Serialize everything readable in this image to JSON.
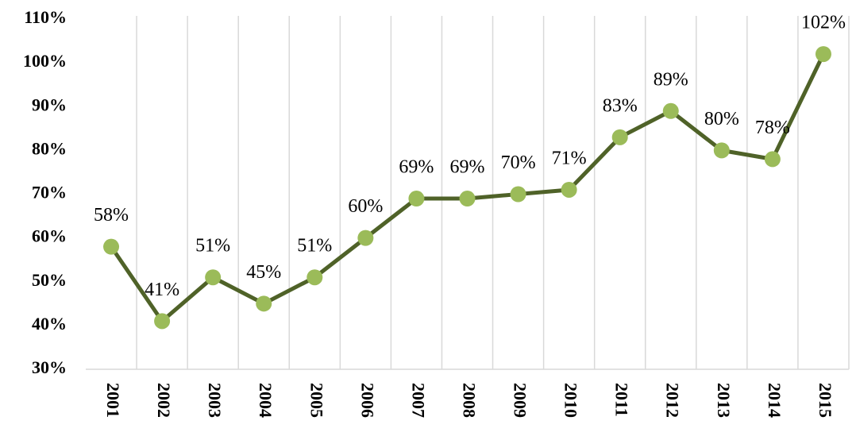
{
  "chart_data": {
    "type": "line",
    "categories": [
      "2001",
      "2002",
      "2003",
      "2004",
      "2005",
      "2006",
      "2007",
      "2008",
      "2009",
      "2010",
      "2011",
      "2012",
      "2013",
      "2014",
      "2015"
    ],
    "series": [
      {
        "color": "#4f6228",
        "marker_color": "#9bbb59",
        "values": [
          58,
          41,
          51,
          45,
          51,
          60,
          69,
          69,
          70,
          71,
          83,
          89,
          80,
          78,
          102
        ],
        "value_labels": [
          "58%",
          "41%",
          "51%",
          "45%",
          "51%",
          "60%",
          "69%",
          "69%",
          "70%",
          "71%",
          "83%",
          "89%",
          "80%",
          "78%",
          "102%"
        ]
      }
    ],
    "ylim": [
      30,
      110
    ],
    "yticks": [
      {
        "value": 30,
        "label": "30%"
      },
      {
        "value": 40,
        "label": "40%"
      },
      {
        "value": 50,
        "label": "50%"
      },
      {
        "value": 60,
        "label": "60%"
      },
      {
        "value": 70,
        "label": "70%"
      },
      {
        "value": 80,
        "label": "80%"
      },
      {
        "value": 90,
        "label": "90%"
      },
      {
        "value": 100,
        "label": "100%"
      },
      {
        "value": 110,
        "label": "110%"
      }
    ],
    "grid": true
  }
}
